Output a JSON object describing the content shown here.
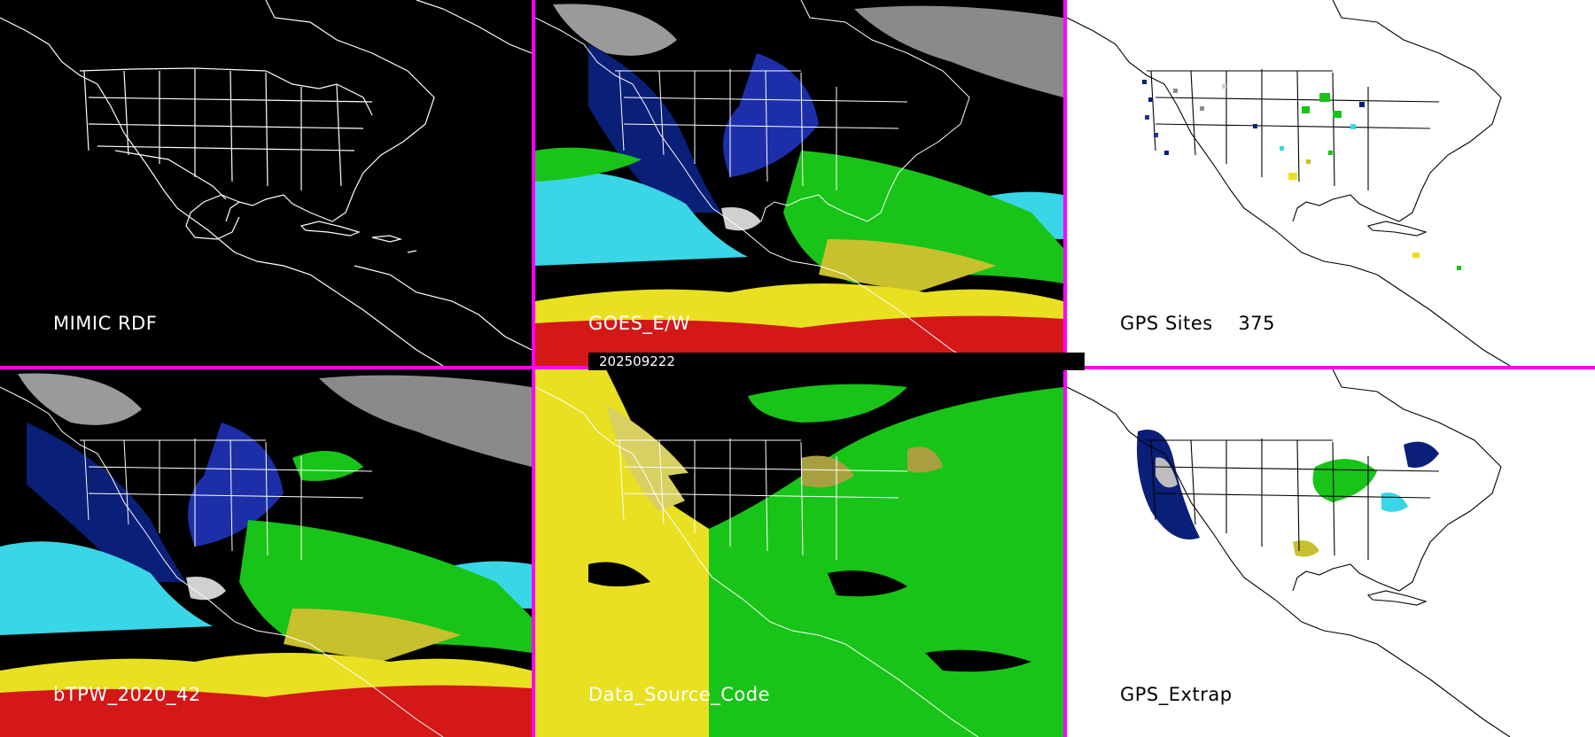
{
  "timestamp": "202509222",
  "palette": {
    "divider": "#ff00ff",
    "coastline": "#ffffff",
    "tpw_bands": [
      "#8c8c8c",
      "#d0d0d0",
      "#1c2fa8",
      "#0a1f78",
      "#38d6e6",
      "#18c418",
      "#c8c02c",
      "#e8e020",
      "#d41818"
    ]
  },
  "panels": [
    {
      "title": "MIMIC RDF",
      "background": "dark",
      "layer": "coastlines-only"
    },
    {
      "title": "GOES_E/W",
      "background": "dark",
      "layer": "total-precipitable-water"
    },
    {
      "title": "GPS Sites",
      "count": "375",
      "background": "light",
      "layer": "gps-site-markers"
    },
    {
      "title": "bTPW_2020_42",
      "background": "dark",
      "layer": "blended-tpw"
    },
    {
      "title": "Data_Source_Code",
      "background": "dark",
      "layer": "source-code-mask"
    },
    {
      "title": "GPS_Extrap",
      "background": "light",
      "layer": "gps-extrapolated"
    }
  ]
}
